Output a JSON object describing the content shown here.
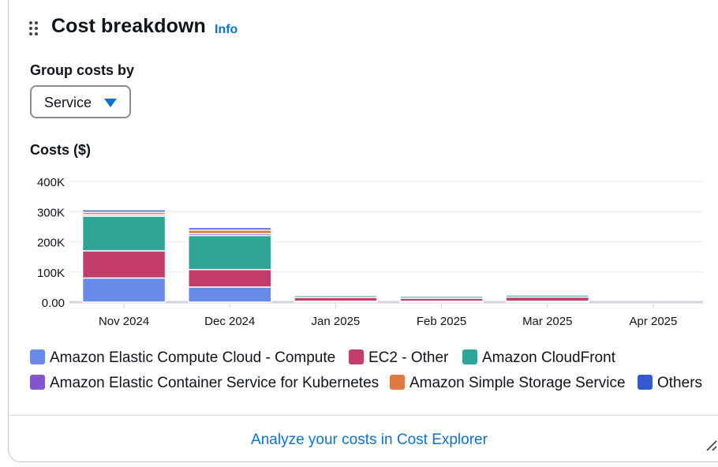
{
  "widget": {
    "title": "Cost breakdown",
    "info_link": "Info",
    "group_by_label": "Group costs by",
    "group_by_value": "Service",
    "chart_label": "Costs ($)",
    "footer_link": "Analyze your costs in Cost Explorer"
  },
  "chart_data": {
    "type": "bar",
    "stacked": true,
    "categories": [
      "Nov 2024",
      "Dec 2024",
      "Jan 2025",
      "Feb 2025",
      "Mar 2025",
      "Apr 2025"
    ],
    "ylim": [
      0,
      400000
    ],
    "yticks": [
      0,
      100000,
      200000,
      300000,
      400000
    ],
    "ytick_labels": [
      "0.00",
      "100K",
      "200K",
      "300K",
      "400K"
    ],
    "grid": true,
    "legend_position": "bottom",
    "series": [
      {
        "name": "Amazon Elastic Compute Cloud - Compute",
        "color": "#688ae8",
        "values": [
          80000,
          50000,
          3000,
          3000,
          3000,
          0
        ]
      },
      {
        "name": "EC2 - Other",
        "color": "#c33d69",
        "values": [
          90000,
          58000,
          12000,
          10000,
          14000,
          0
        ]
      },
      {
        "name": "Amazon CloudFront",
        "color": "#2ea597",
        "values": [
          115000,
          113000,
          8000,
          8000,
          8000,
          0
        ]
      },
      {
        "name": "Amazon Elastic Container Service for Kubernetes",
        "color": "#8456ce",
        "values": [
          5000,
          6000,
          1000,
          1000,
          1000,
          0
        ]
      },
      {
        "name": "Amazon Simple Storage Service",
        "color": "#e07941",
        "values": [
          8000,
          12000,
          1000,
          1000,
          1000,
          0
        ]
      },
      {
        "name": "Others",
        "color": "#3759ce",
        "values": [
          8000,
          8000,
          1000,
          1000,
          1000,
          0
        ]
      }
    ]
  }
}
